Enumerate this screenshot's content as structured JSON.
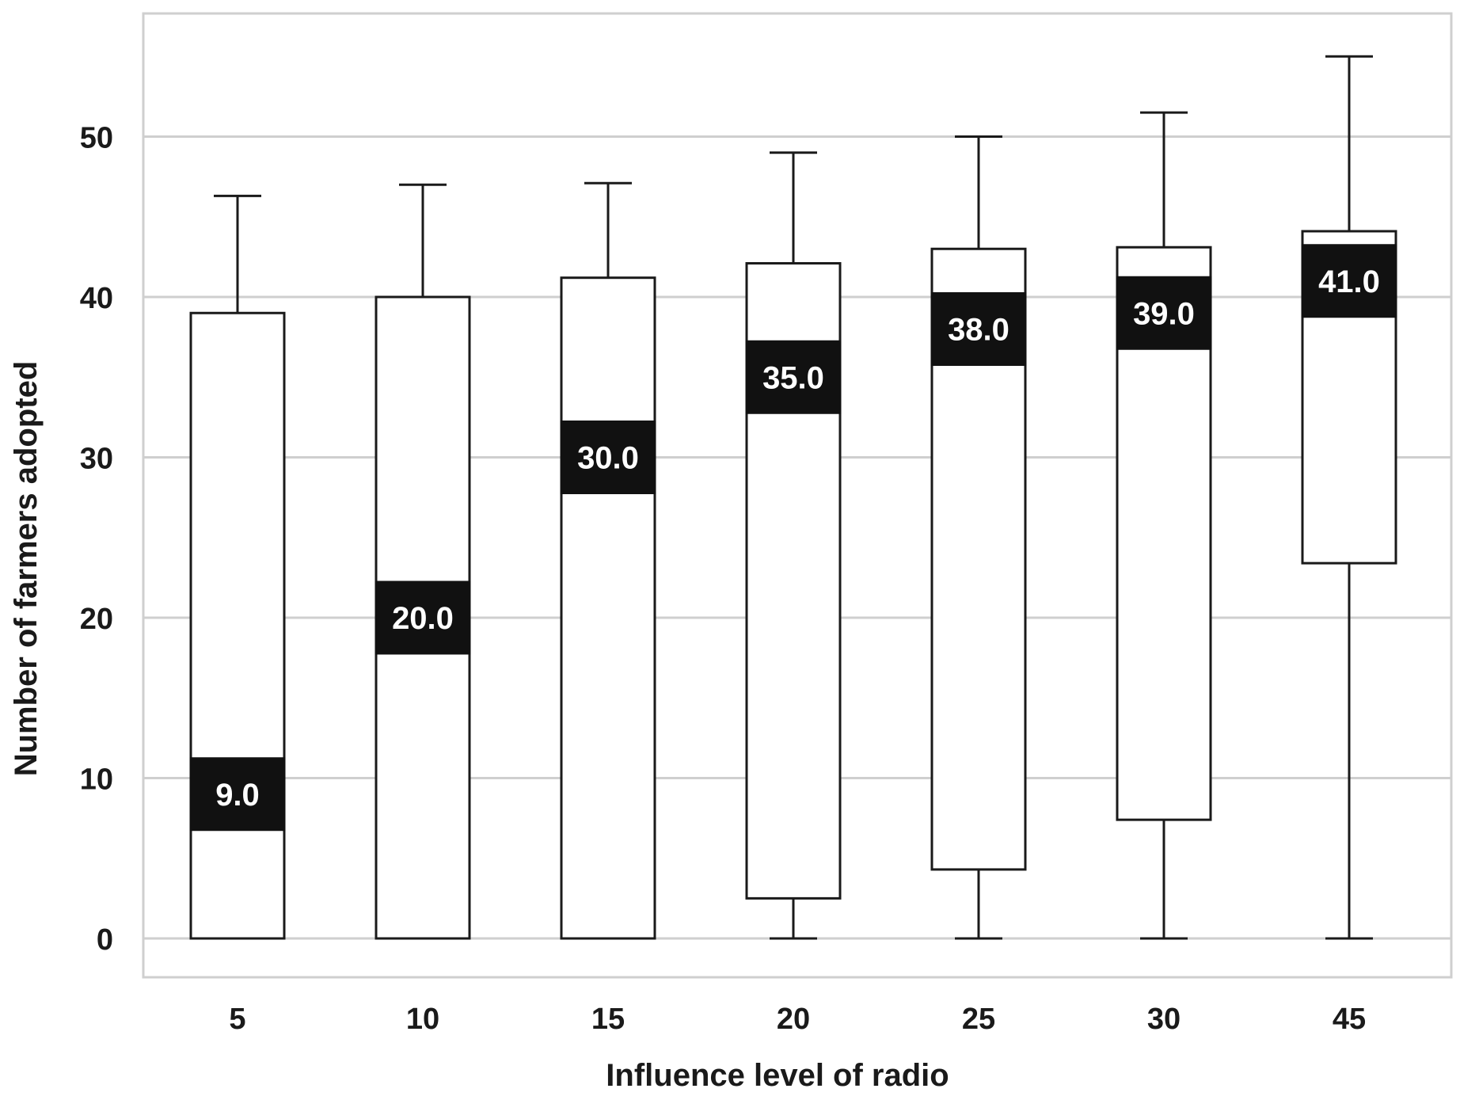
{
  "chart_data": {
    "type": "box",
    "xlabel": "Influence level of radio",
    "ylabel": "Number of farmers adopted",
    "ylim": [
      0,
      60
    ],
    "yticks": [
      0,
      10,
      20,
      30,
      40,
      50
    ],
    "grid": true,
    "categories": [
      "5",
      "10",
      "15",
      "20",
      "25",
      "30",
      "45"
    ],
    "boxes": [
      {
        "category": "5",
        "min": 0,
        "q1": 0,
        "median": 9.0,
        "median_label": "9.0",
        "q3": 39.0,
        "max": 46.3
      },
      {
        "category": "10",
        "min": 0,
        "q1": 0,
        "median": 20.0,
        "median_label": "20.0",
        "q3": 40.0,
        "max": 47.0
      },
      {
        "category": "15",
        "min": 0,
        "q1": 0,
        "median": 30.0,
        "median_label": "30.0",
        "q3": 41.2,
        "max": 47.1
      },
      {
        "category": "20",
        "min": 0,
        "q1": 2.5,
        "median": 35.0,
        "median_label": "35.0",
        "q3": 42.1,
        "max": 49.0
      },
      {
        "category": "25",
        "min": 0,
        "q1": 4.3,
        "median": 38.0,
        "median_label": "38.0",
        "q3": 43.0,
        "max": 50.0
      },
      {
        "category": "30",
        "min": 0,
        "q1": 7.4,
        "median": 39.0,
        "median_label": "39.0",
        "q3": 43.1,
        "max": 51.5
      },
      {
        "category": "45",
        "min": 0,
        "q1": 23.4,
        "median": 41.0,
        "median_label": "41.0",
        "q3": 44.1,
        "max": 55.0
      }
    ]
  }
}
